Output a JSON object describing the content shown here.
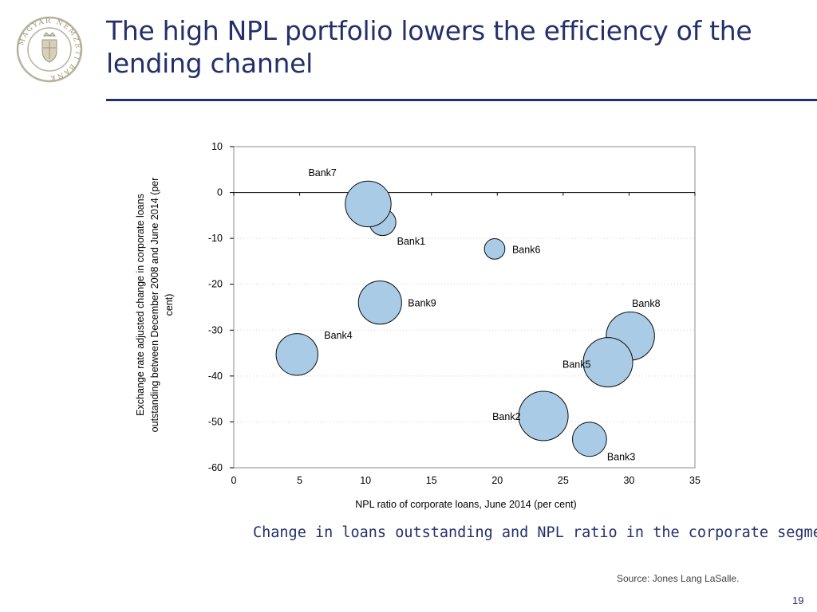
{
  "header": {
    "title": "The high NPL portfolio lowers the efficiency of the lending channel",
    "logo_text": "MAGYAR NEMZETI BANK"
  },
  "caption": "Change in loans outstanding and NPL ratio in the corporate segment",
  "source": "Source: Jones Lang LaSalle.",
  "page_number": "19",
  "colors": {
    "title": "#24306a",
    "bubble_fill": "#a9cbe6",
    "bubble_stroke": "#0d0d0d",
    "logo_ring": "#b9b29a"
  },
  "chart_data": {
    "type": "scatter",
    "subtype": "bubble",
    "xlabel": "NPL ratio of corporate loans, June 2014 (per cent)",
    "ylabel": "Exchange rate adjusted change in corporate loans outstanding between December 2008 and June 2014 (per cent)",
    "xlim": [
      0,
      35
    ],
    "ylim": [
      -60,
      10
    ],
    "xticks": [
      0,
      5,
      10,
      15,
      20,
      25,
      30,
      35
    ],
    "yticks": [
      10,
      0,
      -10,
      -20,
      -30,
      -40,
      -50,
      -60
    ],
    "grid": "horizontal-dotted",
    "points": [
      {
        "label": "Bank1",
        "x": 11.3,
        "y": -6.5,
        "size": 3
      },
      {
        "label": "Bank7",
        "x": 10.2,
        "y": -2.5,
        "size": 9
      },
      {
        "label": "Bank6",
        "x": 19.8,
        "y": -12.3,
        "size": 1.8
      },
      {
        "label": "Bank9",
        "x": 11.1,
        "y": -24.0,
        "size": 8
      },
      {
        "label": "Bank4",
        "x": 4.8,
        "y": -35.3,
        "size": 7.5
      },
      {
        "label": "Bank8",
        "x": 30.1,
        "y": -31.3,
        "size": 10
      },
      {
        "label": "Bank5",
        "x": 28.4,
        "y": -37.0,
        "size": 10.5
      },
      {
        "label": "Bank2",
        "x": 23.5,
        "y": -48.7,
        "size": 10.5
      },
      {
        "label": "Bank3",
        "x": 27.0,
        "y": -53.8,
        "size": 5
      }
    ]
  }
}
